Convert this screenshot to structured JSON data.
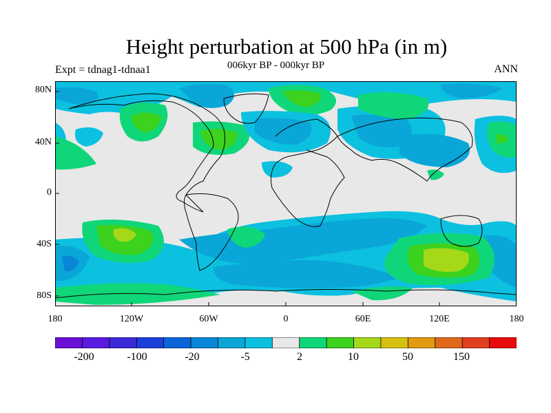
{
  "title": "Height perturbation at 500 hPa (in m)",
  "subtitle_left": "Expt = tdnag1-tdnaa1",
  "subtitle_center": "006kyr BP - 000kyr BP",
  "subtitle_right": "ANN",
  "map": {
    "projection": "cylindrical equidistant",
    "lon_range": [
      -180,
      180
    ],
    "lat_range": [
      -90,
      90
    ],
    "background": "#e8e8e8",
    "coastline_color": "#000000",
    "lat_ticks": [
      "80N",
      "40N",
      "0",
      "40S",
      "80S"
    ],
    "lon_ticks": [
      "180",
      "120W",
      "60W",
      "0",
      "60E",
      "120E",
      "180"
    ]
  },
  "colorbar": {
    "colors": [
      "#6a0fd6",
      "#5a1ae0",
      "#3b2ad8",
      "#1a3fd8",
      "#0a66d8",
      "#0a86d8",
      "#0aa6d8",
      "#0cc0e0",
      "#e8e8e8",
      "#10d67a",
      "#3cd21e",
      "#a6d81a",
      "#d6c010",
      "#e29a10",
      "#e0681a",
      "#e04020",
      "#e80a0a"
    ],
    "labels": [
      "-200",
      "-100",
      "-20",
      "-5",
      "2",
      "10",
      "50",
      "150"
    ]
  }
}
